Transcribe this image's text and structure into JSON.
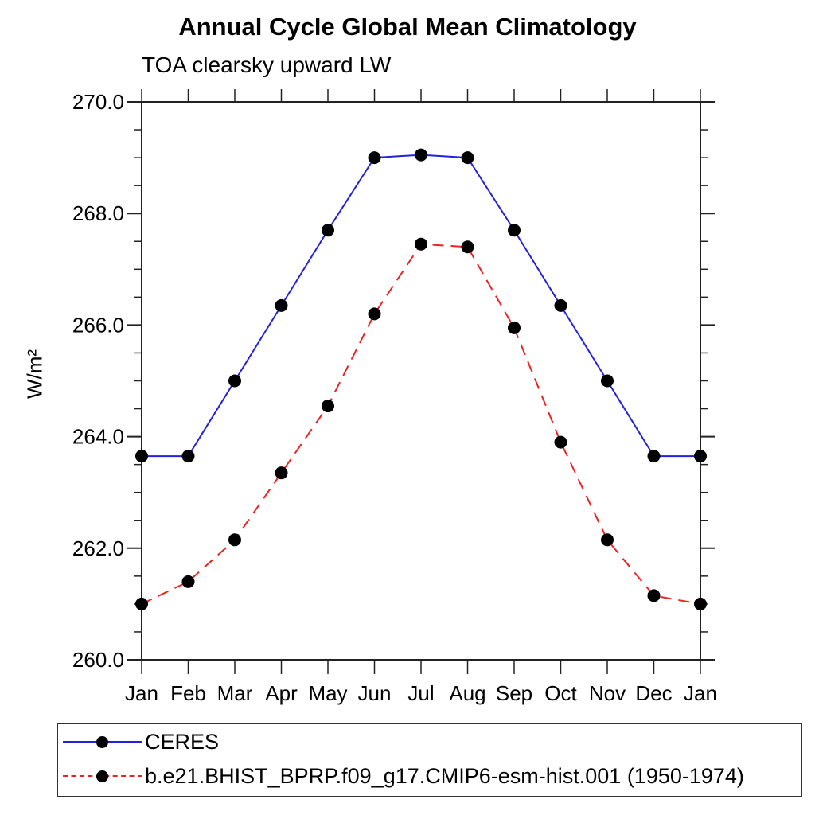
{
  "chart_data": {
    "type": "line",
    "title": "Annual Cycle Global Mean Climatology",
    "subtitle": "TOA clearsky upward LW",
    "ylabel": "W/m²",
    "xlabel": "",
    "x_categories": [
      "Jan",
      "Feb",
      "Mar",
      "Apr",
      "May",
      "Jun",
      "Jul",
      "Aug",
      "Sep",
      "Oct",
      "Nov",
      "Dec",
      "Jan"
    ],
    "ylim": [
      260.0,
      270.0
    ],
    "y_major_step": 2.0,
    "y_minor_step": 0.5,
    "y_tick_labels": [
      "260.0",
      "262.0",
      "264.0",
      "266.0",
      "268.0",
      "270.0"
    ],
    "grid": false,
    "legend_position": "bottom",
    "frame_color": "#222222",
    "series": [
      {
        "name": "CERES",
        "style": "solid",
        "color": "#2222dd",
        "marker": "circle",
        "marker_color": "#000000",
        "values": [
          263.65,
          263.65,
          265.0,
          266.35,
          267.7,
          269.0,
          269.05,
          269.0,
          267.7,
          266.35,
          265.0,
          263.65,
          263.65
        ]
      },
      {
        "name": "b.e21.BHIST_BPRP.f09_g17.CMIP6-esm-hist.001 (1950-1974)",
        "style": "dashed",
        "color": "#ee2222",
        "marker": "circle",
        "marker_color": "#000000",
        "values": [
          261.0,
          261.4,
          262.15,
          263.35,
          264.55,
          266.2,
          267.45,
          267.4,
          265.95,
          263.9,
          262.15,
          261.15,
          261.0
        ]
      }
    ]
  }
}
